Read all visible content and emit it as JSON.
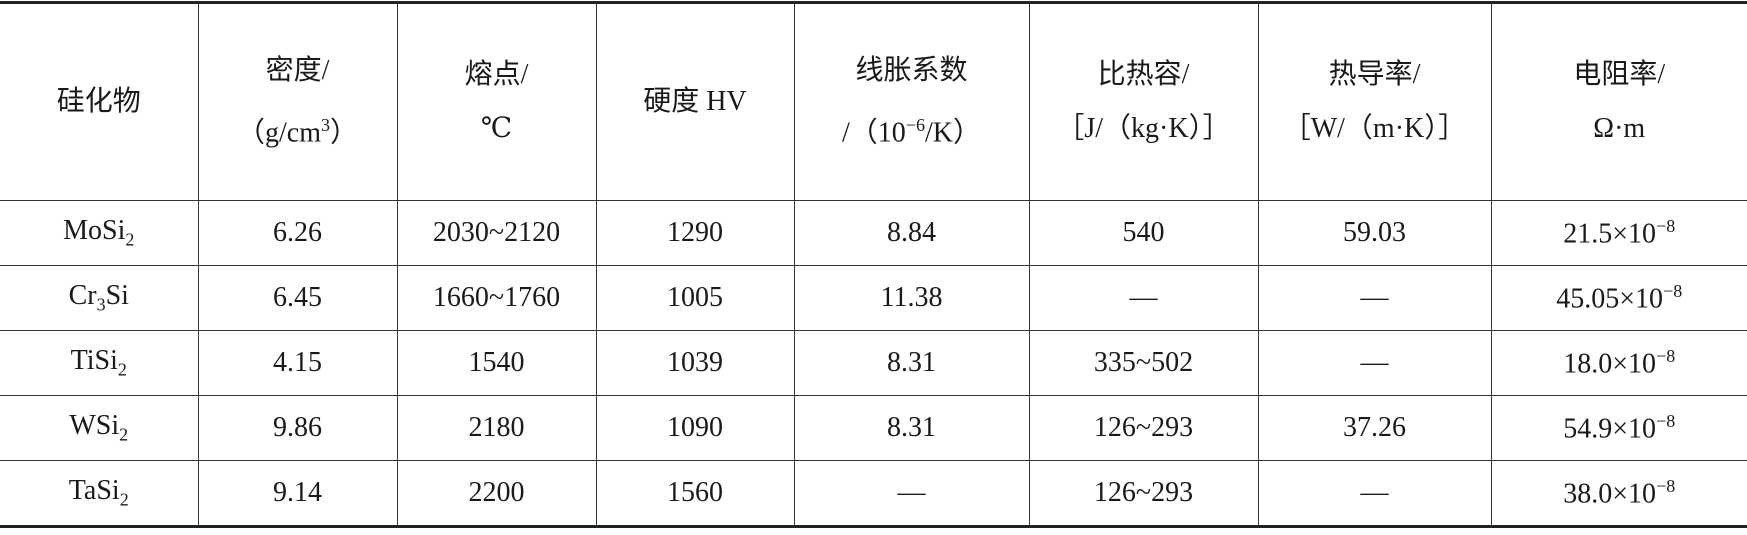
{
  "table": {
    "header": [
      [
        [
          "硅化物"
        ]
      ],
      [
        [
          "密度/"
        ],
        [
          "（g/cm",
          {
            "sup": "3"
          },
          "）"
        ]
      ],
      [
        [
          "熔点/"
        ],
        [
          "℃"
        ]
      ],
      [
        [
          "硬度 HV"
        ]
      ],
      [
        [
          "线胀系数"
        ],
        [
          "/（10",
          {
            "sup": "−6"
          },
          "/K）"
        ]
      ],
      [
        [
          "比热容/"
        ],
        [
          "［J/（kg·K）］"
        ]
      ],
      [
        [
          "热导率/"
        ],
        [
          "［W/（m·K）］"
        ]
      ],
      [
        [
          "电阻率/"
        ],
        [
          "Ω·m"
        ]
      ]
    ],
    "rows": [
      [
        [
          "MoSi",
          {
            "sub": "2"
          }
        ],
        [
          "6.26"
        ],
        [
          "2030~2120"
        ],
        [
          "1290"
        ],
        [
          "8.84"
        ],
        [
          "540"
        ],
        [
          "59.03"
        ],
        [
          "21.5×10",
          {
            "sup": "−8"
          }
        ]
      ],
      [
        [
          "Cr",
          {
            "sub": "3"
          },
          "Si"
        ],
        [
          "6.45"
        ],
        [
          "1660~1760"
        ],
        [
          "1005"
        ],
        [
          "11.38"
        ],
        [
          "—"
        ],
        [
          "—"
        ],
        [
          "45.05×10",
          {
            "sup": "−8"
          }
        ]
      ],
      [
        [
          "TiSi",
          {
            "sub": "2"
          }
        ],
        [
          "4.15"
        ],
        [
          "1540"
        ],
        [
          "1039"
        ],
        [
          "8.31"
        ],
        [
          "335~502"
        ],
        [
          "—"
        ],
        [
          "18.0×10",
          {
            "sup": "−8"
          }
        ]
      ],
      [
        [
          "WSi",
          {
            "sub": "2"
          }
        ],
        [
          "9.86"
        ],
        [
          "2180"
        ],
        [
          "1090"
        ],
        [
          "8.31"
        ],
        [
          "126~293"
        ],
        [
          "37.26"
        ],
        [
          "54.9×10",
          {
            "sup": "−8"
          }
        ]
      ],
      [
        [
          "TaSi",
          {
            "sub": "2"
          }
        ],
        [
          "9.14"
        ],
        [
          "2200"
        ],
        [
          "1560"
        ],
        [
          "—"
        ],
        [
          "126~293"
        ],
        [
          "—"
        ],
        [
          "38.0×10",
          {
            "sup": "−8"
          }
        ]
      ]
    ]
  }
}
